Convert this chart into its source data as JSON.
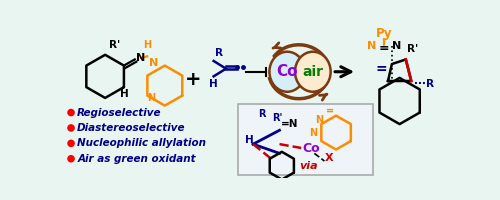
{
  "bg_color": "#e8f5f0",
  "bullet_points": [
    "Regioselective",
    "Diastereoselective",
    "Nucleophilic allylation",
    "Air as green oxidant"
  ],
  "bullet_color": "#ff0000",
  "bullet_text_color": "#00008B",
  "colors": {
    "black": "#000000",
    "orange": "#FF8C00",
    "dark_blue": "#00008B",
    "blue": "#0055CC",
    "green": "#008000",
    "purple": "#8B008B",
    "red": "#CC0000",
    "brown": "#7B3A10",
    "co_purple": "#9400D3",
    "gray": "#888888"
  }
}
